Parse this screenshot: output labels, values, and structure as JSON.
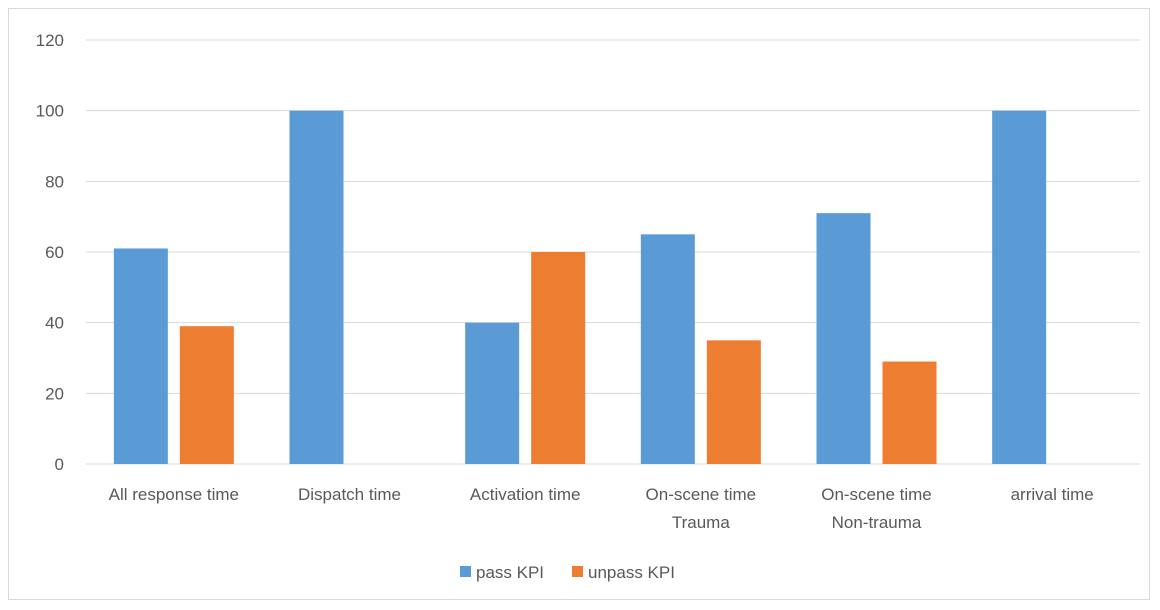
{
  "chart_data": {
    "type": "bar",
    "categories": [
      [
        "All response time"
      ],
      [
        "Dispatch time"
      ],
      [
        "Activation time"
      ],
      [
        "On-scene time",
        "Trauma"
      ],
      [
        "On-scene time",
        "Non-trauma"
      ],
      [
        "arrival time"
      ]
    ],
    "series": [
      {
        "name": "pass KPI",
        "color": "#5b9bd5",
        "values": [
          61,
          100,
          40,
          65,
          71,
          100
        ]
      },
      {
        "name": "unpass KPI",
        "color": "#ed7d31",
        "values": [
          39,
          0,
          60,
          35,
          29,
          0
        ]
      }
    ],
    "ylim": [
      0,
      120
    ],
    "yticks": [
      0,
      20,
      40,
      60,
      80,
      100,
      120
    ],
    "grid": true,
    "legend_position": "bottom",
    "gridline_color": "#d9d9d9",
    "axis_text_color": "#595959"
  }
}
